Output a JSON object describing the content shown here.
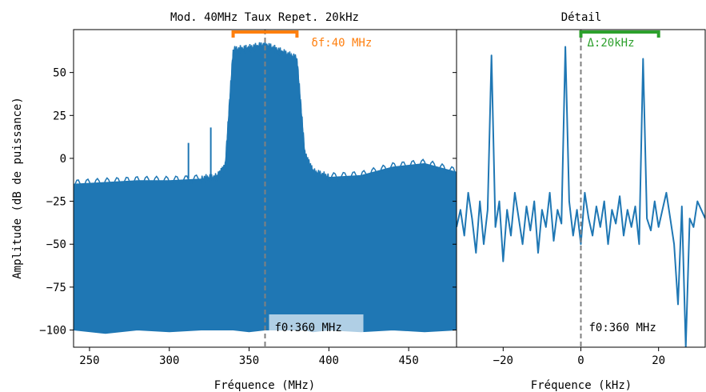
{
  "chart_data": [
    {
      "type": "line",
      "title": "Mod. 40MHz Taux Repet. 20kHz",
      "xlabel": "Fréquence (MHz)",
      "ylabel": "Amplitude (dB de puissance)",
      "xlim": [
        240,
        480
      ],
      "ylim": [
        -110,
        75
      ],
      "xticks": [
        250,
        300,
        350,
        400,
        450
      ],
      "yticks": [
        -100,
        -75,
        -50,
        -25,
        0,
        25,
        50
      ],
      "series_color": "#1f77b4",
      "series": [
        {
          "description": "dense noise band (min / max envelope)",
          "x": [
            240,
            260,
            280,
            300,
            320,
            330,
            335,
            340,
            350,
            360,
            370,
            380,
            385,
            390,
            400,
            420,
            440,
            460,
            480
          ],
          "upper": [
            -15,
            -14,
            -13,
            -13,
            -12,
            -11,
            -5,
            63,
            64,
            66,
            62,
            58,
            2,
            -8,
            -11,
            -10,
            -5,
            -3,
            -8
          ],
          "lower": [
            -100,
            -102,
            -100,
            -101,
            -100,
            -100,
            -100,
            -100,
            -101,
            -100,
            -100,
            -100,
            -100,
            -101,
            -100,
            -101,
            -100,
            -101,
            -100
          ]
        }
      ],
      "spurs": [
        {
          "x": 312,
          "y": 9
        },
        {
          "x": 326,
          "y": 18
        }
      ],
      "center_line": {
        "x": 360,
        "color": "#808080"
      },
      "bandwidth_bracket": {
        "x0": 340,
        "x1": 380,
        "label": "δf:40 MHz",
        "color": "#ff7f0e"
      },
      "center_label": "f0:360 MHz"
    },
    {
      "type": "line",
      "title": "Détail",
      "xlabel": "Fréquence (kHz)",
      "ylabel": "",
      "xlim": [
        -32,
        32
      ],
      "ylim": [
        -110,
        75
      ],
      "xticks": [
        -20,
        0,
        20
      ],
      "series_color": "#1f77b4",
      "series": [
        {
          "x": [
            -32,
            -31,
            -30,
            -29,
            -28,
            -27,
            -26,
            -25,
            -24,
            -23,
            -22,
            -21,
            -20,
            -19,
            -18,
            -17,
            -16,
            -15,
            -14,
            -13,
            -12,
            -11,
            -10,
            -9,
            -8,
            -7,
            -6,
            -5,
            -4,
            -3,
            -2,
            -1,
            0,
            1,
            2,
            3,
            4,
            5,
            6,
            7,
            8,
            9,
            10,
            11,
            12,
            13,
            14,
            15,
            16,
            17,
            18,
            19,
            20,
            21,
            22,
            23,
            24,
            25,
            26,
            27,
            28,
            29,
            30,
            31,
            32
          ],
          "y": [
            -40,
            -30,
            -45,
            -20,
            -35,
            -55,
            -25,
            -50,
            -30,
            60,
            -40,
            -25,
            -60,
            -30,
            -45,
            -20,
            -35,
            -50,
            -28,
            -42,
            -25,
            -55,
            -30,
            -40,
            -20,
            -48,
            -30,
            -38,
            65,
            -25,
            -45,
            -30,
            -50,
            -20,
            -35,
            -45,
            -28,
            -40,
            -25,
            -50,
            -30,
            -38,
            -22,
            -45,
            -30,
            -40,
            -28,
            -50,
            58,
            -35,
            -42,
            -25,
            -40,
            -30,
            -20,
            -35,
            -50,
            -85,
            -28,
            -110,
            -35,
            -40,
            -25,
            -30,
            -35
          ]
        }
      ],
      "center_line": {
        "x": 0,
        "color": "#808080"
      },
      "spacing_bracket": {
        "x0": 0,
        "x1": 20,
        "label": "Δ:20kHz",
        "color": "#2ca02c"
      },
      "center_label": "f0:360 MHz"
    }
  ]
}
